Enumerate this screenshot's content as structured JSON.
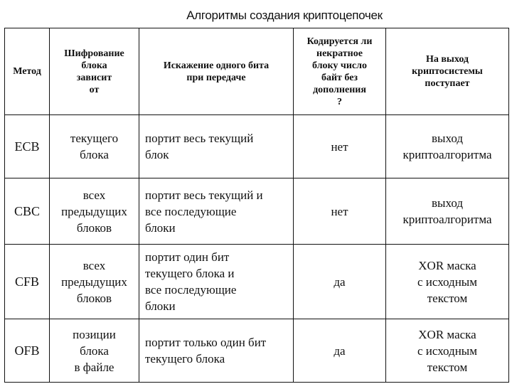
{
  "title": "Алгоритмы создания криптоцепочек",
  "headers": [
    "Метод",
    "Шифрование\nблока\nзависит\nот",
    "Искажение одного бита\nпри передаче",
    "Кодируется ли\nнекратное\nблоку число\nбайт без\nдополнения\n?",
    "На выход\nкриптосистемы\nпоступает"
  ],
  "rows": [
    {
      "method": "ECB",
      "depends": "текущего\nблока",
      "distortion": "портит весь текущий\n    блок",
      "padding": "нет",
      "output": "выход\nкриптоалгоритма"
    },
    {
      "method": "CBC",
      "depends": "всех\nпредыдущих\nблоков",
      "distortion": "портит весь текущий и\n    все последующие\n    блоки",
      "padding": "нет",
      "output": "выход\nкриптоалгоритма"
    },
    {
      "method": "CFB",
      "depends": "всех\nпредыдущих\nблоков",
      "distortion": "портит один бит\n    текущего блока и\n    все последующие\n    блоки",
      "padding": "да",
      "output": "XOR маска\nс исходным\nтекстом"
    },
    {
      "method": "OFB",
      "depends": "позиции\nблока\nв файле",
      "distortion": "портит только один бит\n    текущего блока",
      "padding": "да",
      "output": "XOR маска\nс исходным\nтекстом"
    }
  ]
}
